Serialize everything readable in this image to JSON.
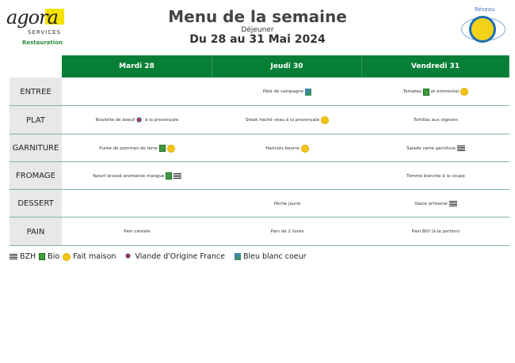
{
  "logo": {
    "brand": "agora",
    "sub": "SERVICES",
    "division": "Restauration"
  },
  "header": {
    "title": "Menu de la semaine",
    "meal": "Déjeuner",
    "period": "Du 28 au 31 Mai 2024"
  },
  "badge": {
    "label": "Réseau",
    "name": "Produit en Bretagne"
  },
  "days": [
    "Mardi 28",
    "Jeudi 30",
    "Vendredi 31"
  ],
  "rows": [
    {
      "label": "ENTREE",
      "cells": [
        [],
        [
          {
            "t": "Pâté de campagne"
          },
          {
            "i": "bbc"
          }
        ],
        [
          {
            "t": "Tomates"
          },
          {
            "i": "bio"
          },
          {
            "t": "et emmental"
          },
          {
            "i": "fm"
          }
        ]
      ]
    },
    {
      "label": "PLAT",
      "cells": [
        [
          {
            "t": "Boulette de boeuf"
          },
          {
            "i": "vof"
          },
          {
            "t": "à la provençale"
          }
        ],
        [
          {
            "t": "Steak haché veau à la provençale"
          },
          {
            "i": "fm"
          }
        ],
        [
          {
            "t": "Tortillas aux oignons"
          }
        ]
      ]
    },
    {
      "label": "GARNITURE",
      "cells": [
        [
          {
            "t": "Purée de pommes de terre"
          },
          {
            "i": "bio"
          },
          {
            "i": "fm"
          }
        ],
        [
          {
            "t": "Haricots beurre"
          },
          {
            "i": "fm"
          }
        ],
        [
          {
            "t": "Salade verte garniture"
          },
          {
            "i": "bzh"
          }
        ]
      ]
    },
    {
      "label": "FROMAGE",
      "cells": [
        [
          {
            "t": "Yaourt brassé aromatisé mangue"
          },
          {
            "i": "bio"
          },
          {
            "i": "bzh"
          }
        ],
        [],
        [
          {
            "t": "Tomme blanche à la coupe"
          }
        ]
      ]
    },
    {
      "label": "DESSERT",
      "cells": [
        [],
        [
          {
            "t": "Pêche jaune"
          }
        ],
        [
          {
            "t": "Glace artisanal"
          },
          {
            "i": "bzh"
          }
        ]
      ]
    },
    {
      "label": "PAIN",
      "cells": [
        [
          {
            "t": "Pain céréale"
          }
        ],
        [
          {
            "t": "Pain de 2 livres"
          }
        ],
        [
          {
            "t": "Pain BIO (à la portion)"
          }
        ]
      ]
    }
  ],
  "legend": [
    {
      "i": "bzh",
      "t": "BZH"
    },
    {
      "i": "bio",
      "t": "Bio"
    },
    {
      "i": "fm",
      "t": "Fait maison"
    },
    {
      "i": "vof",
      "t": "Viande d'Origine France"
    },
    {
      "i": "bbc",
      "t": "Bleu blanc coeur"
    }
  ],
  "icons": {
    "bzh": "bzh-flag-icon",
    "bio": "bio-leaf-icon",
    "fm": "fait-maison-icon",
    "vof": "viande-origine-france-icon",
    "bbc": "bleu-blanc-coeur-icon"
  },
  "colors": {
    "header_green": "#087f36",
    "label_bg": "#e8e8e8",
    "line": "#7fb894"
  }
}
